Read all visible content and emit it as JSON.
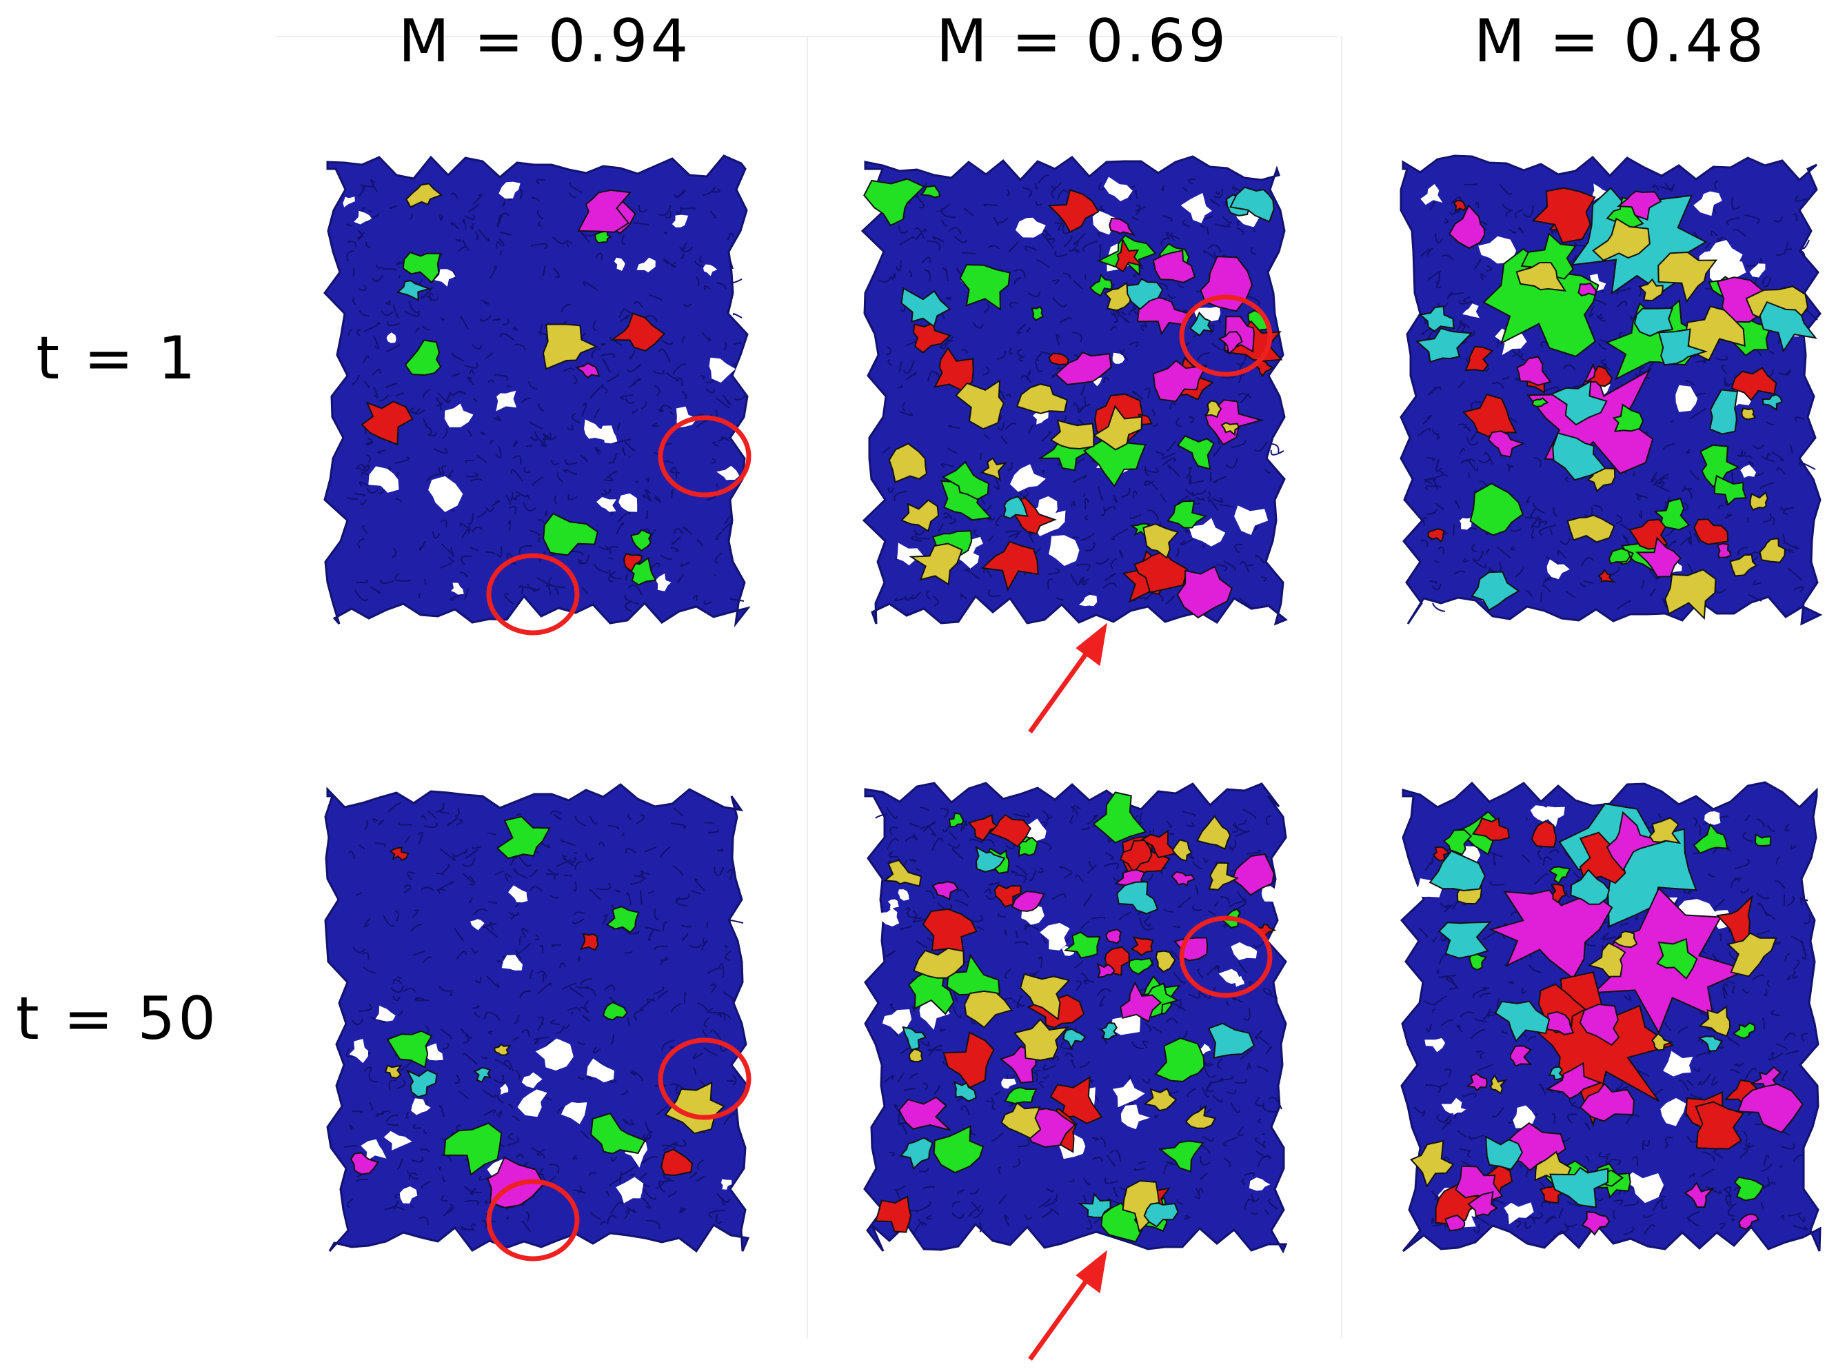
{
  "columns": [
    {
      "label": "M = 0.94"
    },
    {
      "label": "M = 0.69"
    },
    {
      "label": "M = 0.48"
    }
  ],
  "rows": [
    {
      "label": "t = 1"
    },
    {
      "label": "t = 50"
    }
  ],
  "colors": {
    "matrix": "#1f1fa8",
    "matrix_dark": "#121270",
    "green": "#22e022",
    "red": "#e01818",
    "magenta": "#e020d8",
    "yellow": "#d8c83a",
    "cyan": "#30c8c8",
    "annotation": "#ee2020"
  },
  "icons": {
    "highlight": "red-circle-icon",
    "pointer": "red-arrow-icon"
  }
}
